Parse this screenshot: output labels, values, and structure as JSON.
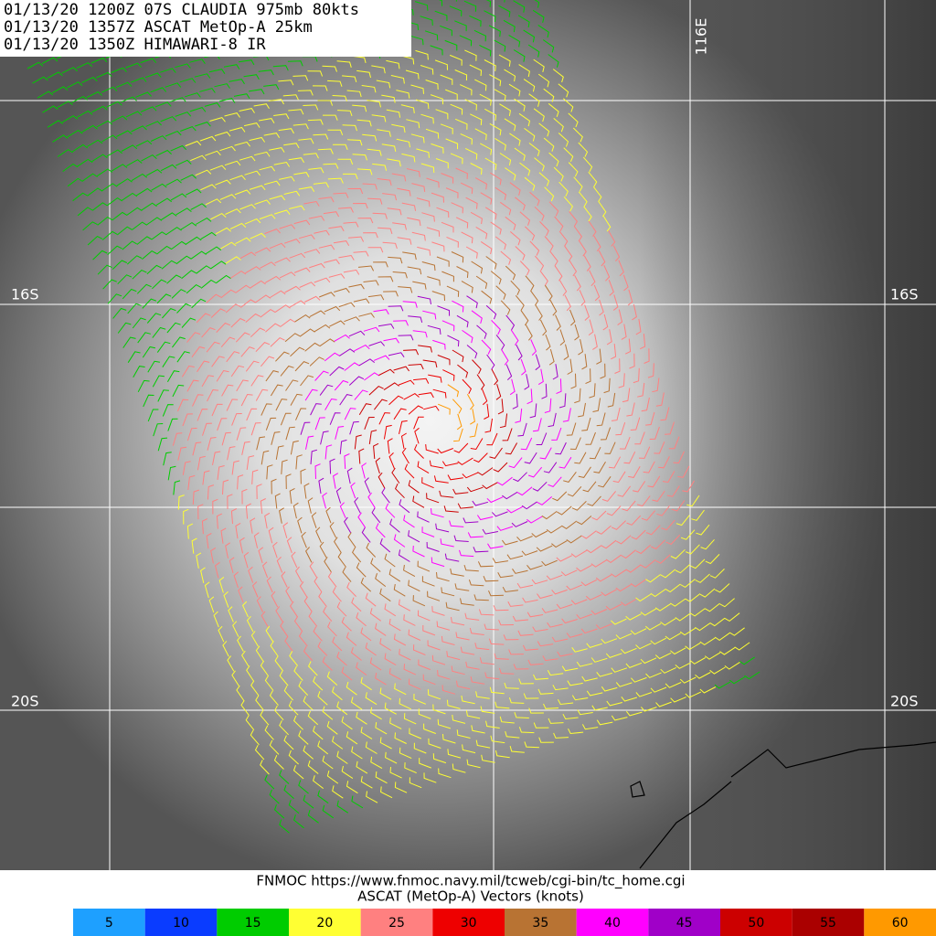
{
  "header": {
    "lines": [
      "01/13/20 1200Z  07S CLAUDIA 975mb 80kts",
      "01/13/20 1357Z  ASCAT MetOp-A 25km",
      "01/13/20 1350Z  HIMAWARI-8 IR"
    ]
  },
  "grid_labels": {
    "lon": [
      "116E"
    ],
    "lat": [
      "16S",
      "20S"
    ]
  },
  "footer": {
    "source": "FNMOC https://www.fnmoc.navy.mil/tcweb/cgi-bin/tc_home.cgi",
    "caption": "ASCAT (MetOp-A) Vectors (knots)"
  },
  "legend": [
    {
      "value": 5,
      "color": "#1ea0ff"
    },
    {
      "value": 10,
      "color": "#0a3cff"
    },
    {
      "value": 15,
      "color": "#00cc00"
    },
    {
      "value": 20,
      "color": "#ffff33"
    },
    {
      "value": 25,
      "color": "#ff8080"
    },
    {
      "value": 30,
      "color": "#ee0000"
    },
    {
      "value": 35,
      "color": "#b87333"
    },
    {
      "value": 40,
      "color": "#ff00ff"
    },
    {
      "value": 45,
      "color": "#a000c8"
    },
    {
      "value": 50,
      "color": "#cc0000"
    },
    {
      "value": 55,
      "color": "#aa0000"
    },
    {
      "value": 60,
      "color": "#ff9900"
    }
  ]
}
